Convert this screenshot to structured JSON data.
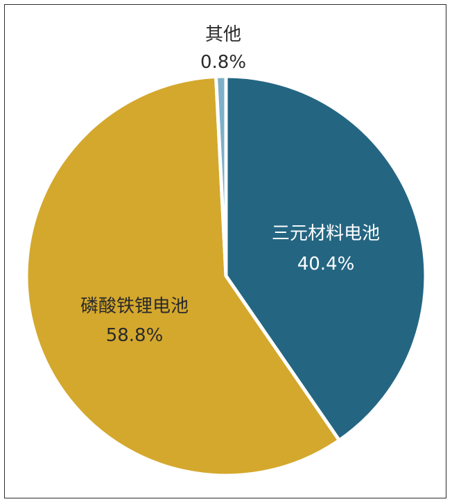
{
  "chart_data": {
    "type": "pie",
    "title": "",
    "categories": [
      "三元材料电池",
      "磷酸铁锂电池",
      "其他"
    ],
    "values": [
      40.4,
      58.8,
      0.8
    ],
    "value_labels": [
      "40.4%",
      "58.8%",
      "0.8%"
    ],
    "colors": [
      "#246682",
      "#d4a82d",
      "#7fb0c8"
    ],
    "label_colors": [
      "#ffffff",
      "#2a2a2a",
      "#2a2a2a"
    ],
    "start": "12 o'clock, clockwise",
    "legend": "none (labels on slices)"
  }
}
